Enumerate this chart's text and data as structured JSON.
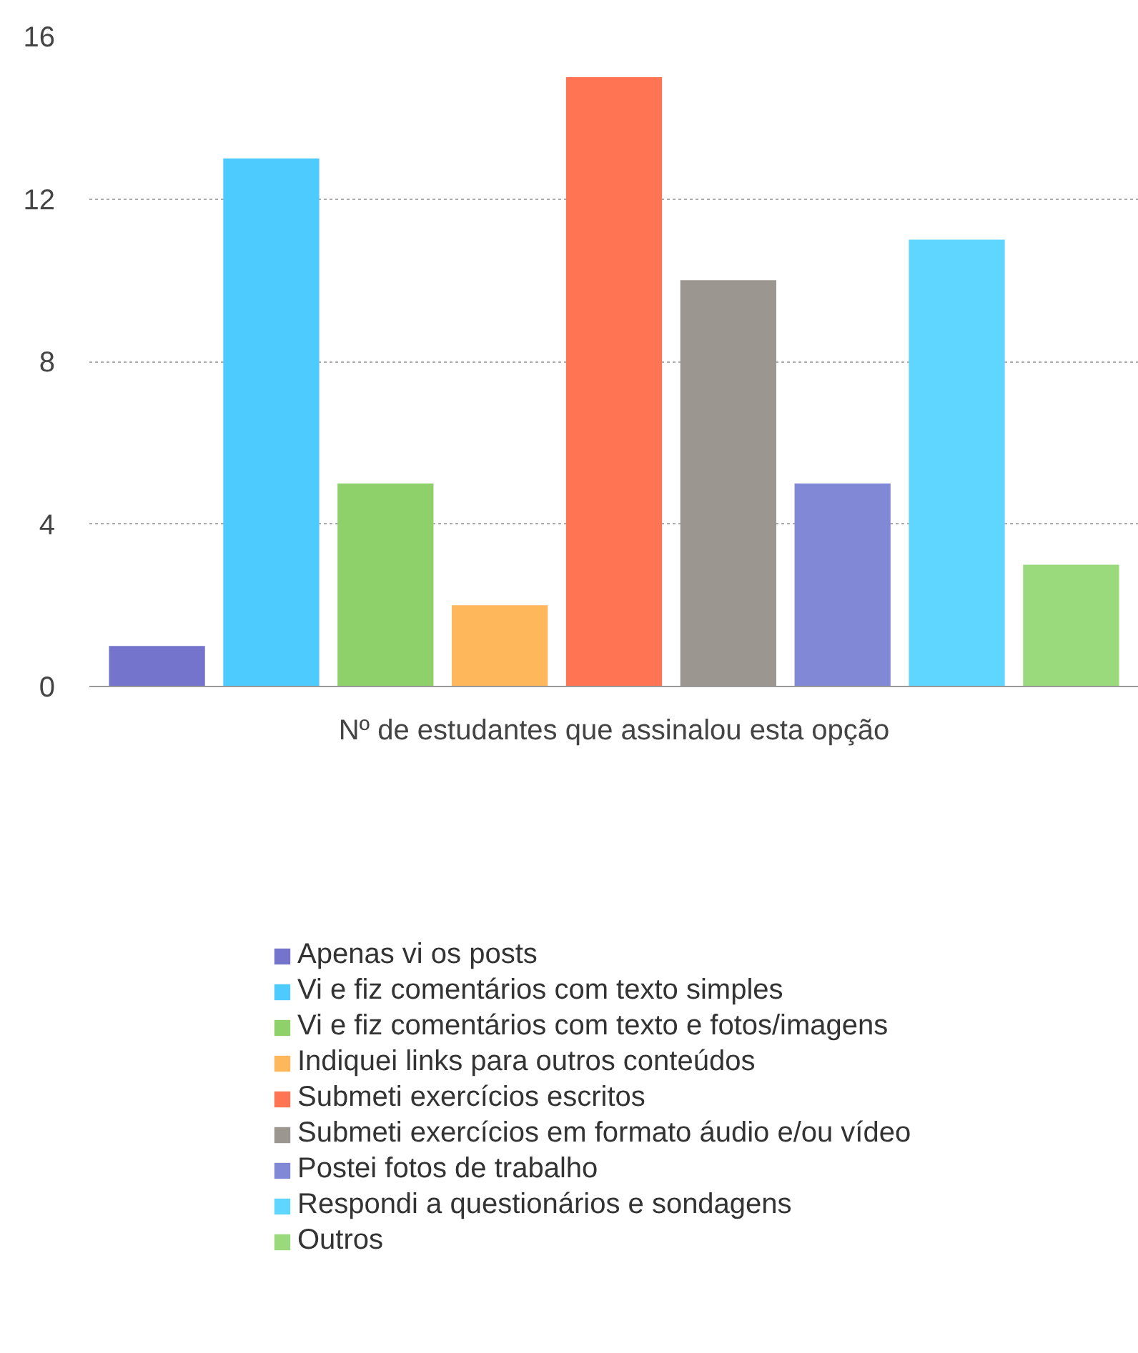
{
  "chart_data": {
    "type": "bar",
    "categories": [
      "Nº de estudantes que assinalou esta opção"
    ],
    "series": [
      {
        "name": "Apenas vi os posts",
        "color": "#7474cc",
        "values": [
          1
        ]
      },
      {
        "name": "Vi e fiz comentários com texto simples",
        "color": "#4dcbff",
        "values": [
          13
        ]
      },
      {
        "name": "Vi e fiz comentários com texto e fotos/imagens",
        "color": "#8ed16b",
        "values": [
          5
        ]
      },
      {
        "name": "Indiquei links para outros conteúdos",
        "color": "#ffb75c",
        "values": [
          2
        ]
      },
      {
        "name": "Submeti exercícios escritos",
        "color": "#ff7453",
        "values": [
          15
        ]
      },
      {
        "name": "Submeti exercícios em formato áudio e/ou vídeo",
        "color": "#9b9690",
        "values": [
          10
        ]
      },
      {
        "name": "Postei fotos de trabalho",
        "color": "#8188d6",
        "values": [
          5
        ]
      },
      {
        "name": "Respondi a questionários e sondagens",
        "color": "#5fd6ff",
        "values": [
          11
        ]
      },
      {
        "name": "Outros",
        "color": "#9ad97c",
        "values": [
          3
        ]
      }
    ],
    "ylim": [
      0,
      16
    ],
    "yticks": [
      0,
      4,
      8,
      12,
      16
    ],
    "grid": "y",
    "legend": "bottom"
  }
}
